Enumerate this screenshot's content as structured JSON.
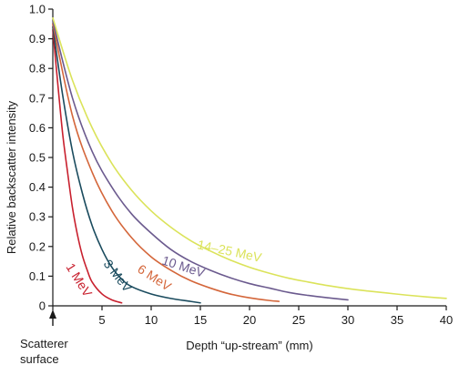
{
  "chart_data": {
    "type": "line",
    "title": "",
    "xlabel": "Depth “up-stream” (mm)",
    "ylabel": "Relative backscatter intensity",
    "xlim": [
      0,
      40
    ],
    "ylim": [
      0,
      1.0
    ],
    "xticks": [
      0,
      5,
      10,
      15,
      20,
      25,
      30,
      35,
      40
    ],
    "xtick_labels": [
      "0",
      "5",
      "10",
      "15",
      "20",
      "25",
      "30",
      "35",
      "40"
    ],
    "yticks": [
      0,
      0.1,
      0.2,
      0.3,
      0.4,
      0.5,
      0.6,
      0.7,
      0.8,
      0.9,
      1.0
    ],
    "ytick_labels": [
      "0",
      "0.1",
      "0.2",
      "0.3",
      "0.4",
      "0.5",
      "0.6",
      "0.7",
      "0.8",
      "0.9",
      "1.0"
    ],
    "grid": false,
    "legend": "none",
    "marker_label": "Scatterer surface",
    "series": [
      {
        "name": "1 MeV",
        "color": "#c8202e",
        "label_angle": 58,
        "x": [
          0,
          0.5,
          1,
          1.5,
          2,
          2.5,
          3,
          3.5,
          4,
          5,
          6,
          7
        ],
        "y": [
          0.93,
          0.75,
          0.58,
          0.45,
          0.33,
          0.24,
          0.17,
          0.12,
          0.08,
          0.04,
          0.02,
          0.01
        ]
      },
      {
        "name": "3 MeV",
        "color": "#1a4b5e",
        "label_angle": 52,
        "x": [
          0,
          1,
          2,
          3,
          4,
          5,
          6,
          7,
          8,
          10,
          12,
          14,
          15
        ],
        "y": [
          0.94,
          0.71,
          0.52,
          0.38,
          0.27,
          0.19,
          0.13,
          0.09,
          0.065,
          0.04,
          0.025,
          0.015,
          0.01
        ]
      },
      {
        "name": "6 MeV",
        "color": "#d4663a",
        "label_angle": 33,
        "x": [
          0,
          2,
          4,
          6,
          8,
          10,
          12,
          14,
          16,
          18,
          20,
          22,
          23
        ],
        "y": [
          0.95,
          0.64,
          0.45,
          0.32,
          0.23,
          0.165,
          0.12,
          0.085,
          0.06,
          0.04,
          0.027,
          0.018,
          0.015
        ]
      },
      {
        "name": "10 MeV",
        "color": "#6b5a8e",
        "label_angle": 18,
        "x": [
          0,
          2,
          4,
          6,
          8,
          10,
          12,
          14,
          16,
          18,
          20,
          22,
          24,
          26,
          28,
          30
        ],
        "y": [
          0.96,
          0.7,
          0.52,
          0.4,
          0.31,
          0.245,
          0.19,
          0.15,
          0.12,
          0.095,
          0.075,
          0.06,
          0.045,
          0.035,
          0.027,
          0.02
        ]
      },
      {
        "name": "14–25 MeV",
        "color": "#dbe35a",
        "label_angle": 12,
        "x": [
          0,
          2,
          4,
          6,
          8,
          10,
          12,
          14,
          16,
          18,
          20,
          22,
          24,
          26,
          28,
          30,
          32,
          34,
          36,
          38,
          40
        ],
        "y": [
          0.97,
          0.76,
          0.6,
          0.48,
          0.39,
          0.32,
          0.265,
          0.22,
          0.185,
          0.155,
          0.13,
          0.11,
          0.093,
          0.08,
          0.068,
          0.058,
          0.05,
          0.043,
          0.036,
          0.03,
          0.025
        ]
      }
    ]
  }
}
